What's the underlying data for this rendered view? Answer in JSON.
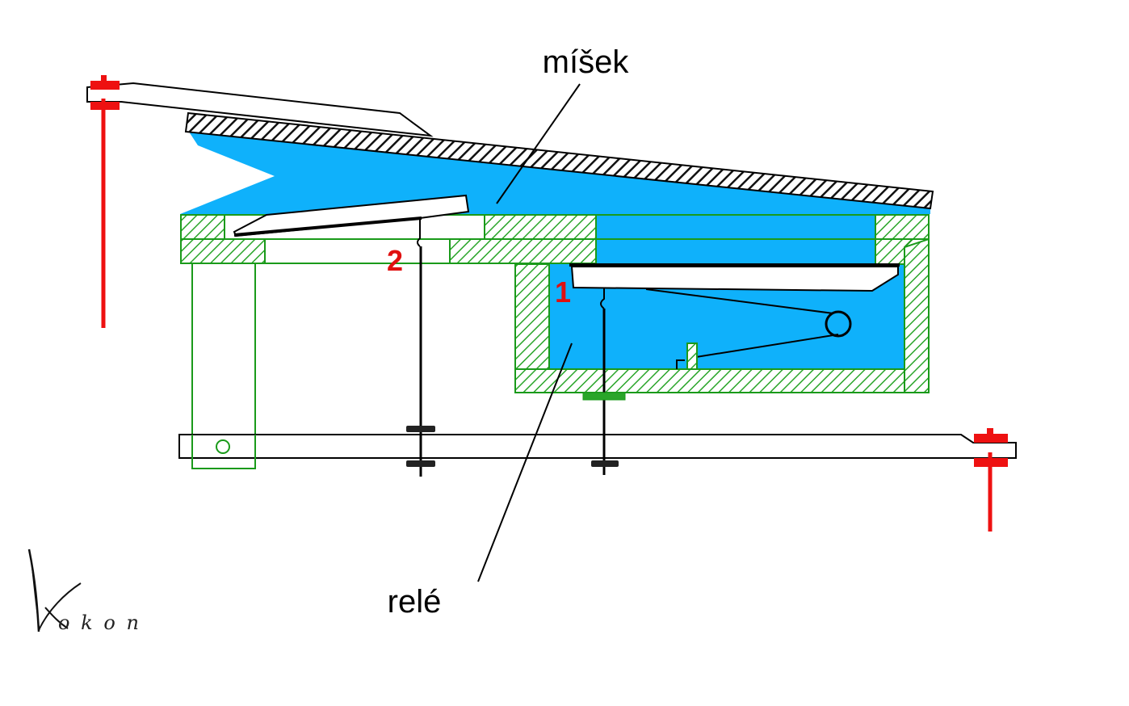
{
  "labels": {
    "bellows": "míšek",
    "relay": "relé",
    "pallet_2": "2",
    "pallet_1": "1"
  },
  "signature": "Kokon",
  "colors": {
    "wind_blue": "#0fb1fb",
    "frame_green": "#1a9a1a",
    "linkage_red": "#ee1111",
    "ink_black": "#000000",
    "label_red": "#e01010"
  },
  "icons": {
    "signature": "signature-mark"
  }
}
